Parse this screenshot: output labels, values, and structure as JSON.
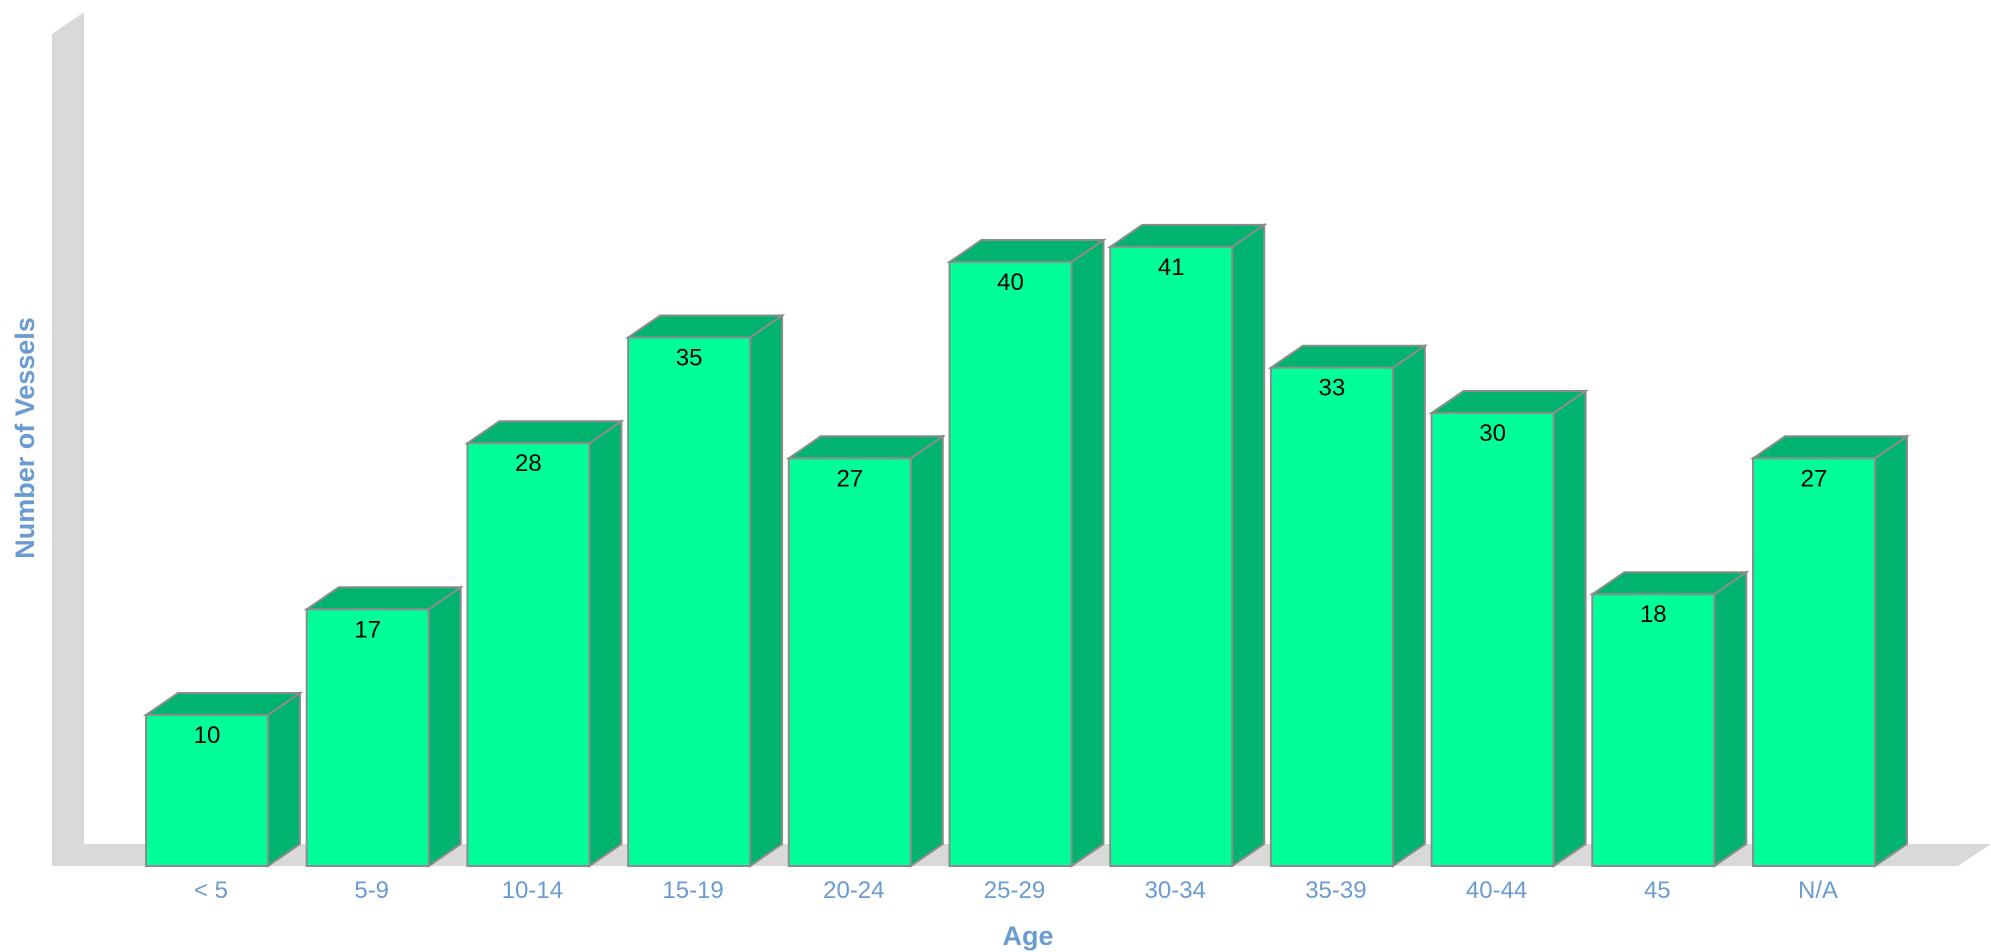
{
  "chart_data": {
    "type": "bar",
    "categories": [
      "< 5",
      "5-9",
      "10-14",
      "15-19",
      "20-24",
      "25-29",
      "30-34",
      "35-39",
      "40-44",
      "45",
      "N/A"
    ],
    "values": [
      10,
      17,
      28,
      35,
      27,
      40,
      41,
      33,
      30,
      18,
      27
    ],
    "xlabel": "Age",
    "ylabel": "Number of Vessels",
    "ylim": [
      0,
      41
    ],
    "grid": false,
    "legend": "none",
    "data_labels": true,
    "three_d": true
  },
  "colors": {
    "bar_front": "#00FF99",
    "bar_side": "#00B36E",
    "bar_top": "#00B36E",
    "bar_edge": "#8C8C8C",
    "axis_text": "#6A9BD1",
    "walls": "#D9D9D9"
  }
}
